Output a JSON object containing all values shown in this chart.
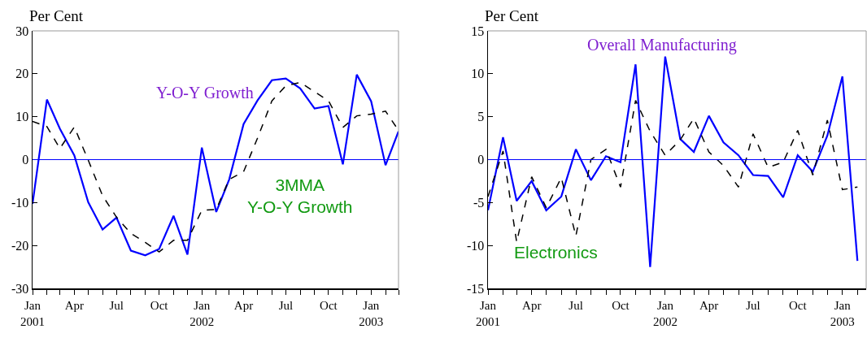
{
  "chart_data": [
    {
      "type": "line",
      "ylabel": "Per Cent",
      "x": [
        "2001-01",
        "2001-02",
        "2001-03",
        "2001-04",
        "2001-05",
        "2001-06",
        "2001-07",
        "2001-08",
        "2001-09",
        "2001-10",
        "2001-11",
        "2001-12",
        "2002-01",
        "2002-02",
        "2002-03",
        "2002-04",
        "2002-05",
        "2002-06",
        "2002-07",
        "2002-08",
        "2002-09",
        "2002-10",
        "2002-11",
        "2002-12",
        "2003-01",
        "2003-02",
        "2003-03"
      ],
      "series": [
        {
          "color": "#0000ff",
          "line_style": "solid",
          "values": [
            -10.3,
            14.0,
            7.2,
            1.0,
            -9.9,
            -16.3,
            -13.5,
            -21.2,
            -22.3,
            -20.8,
            -13.1,
            -22.1,
            2.8,
            -12.2,
            -4.6,
            8.3,
            13.8,
            18.5,
            18.9,
            16.6,
            11.9,
            12.5,
            -1.1,
            19.8,
            13.6,
            -1.3,
            6.6
          ]
        },
        {
          "color": "#000000",
          "line_style": "dashed",
          "values": [
            8.9,
            7.7,
            2.6,
            7.6,
            -0.1,
            -8.4,
            -13.4,
            -17.2,
            -19.3,
            -21.5,
            -18.8,
            -18.8,
            -11.8,
            -11.6,
            -4.6,
            -2.8,
            5.0,
            13.7,
            17.2,
            18.0,
            15.8,
            13.7,
            7.5,
            10.2,
            10.6,
            11.3,
            6.8
          ]
        }
      ],
      "ref_lines": [
        {
          "axis": "y",
          "value": 0,
          "color": "#0000ff"
        }
      ],
      "xlim": [
        "2001-01",
        "2003-03"
      ],
      "xticks": [
        {
          "value": "2001-01",
          "label": "Jan\n2001"
        },
        {
          "value": "2001-02",
          "label": null
        },
        {
          "value": "2001-03",
          "label": null
        },
        {
          "value": "2001-04",
          "label": "Apr"
        },
        {
          "value": "2001-05",
          "label": null
        },
        {
          "value": "2001-06",
          "label": null
        },
        {
          "value": "2001-07",
          "label": "Jul"
        },
        {
          "value": "2001-08",
          "label": null
        },
        {
          "value": "2001-09",
          "label": null
        },
        {
          "value": "2001-10",
          "label": "Oct"
        },
        {
          "value": "2001-11",
          "label": null
        },
        {
          "value": "2001-12",
          "label": null
        },
        {
          "value": "2002-01",
          "label": "Jan\n2002"
        },
        {
          "value": "2002-02",
          "label": null
        },
        {
          "value": "2002-03",
          "label": null
        },
        {
          "value": "2002-04",
          "label": "Apr"
        },
        {
          "value": "2002-05",
          "label": null
        },
        {
          "value": "2002-06",
          "label": null
        },
        {
          "value": "2002-07",
          "label": "Jul"
        },
        {
          "value": "2002-08",
          "label": null
        },
        {
          "value": "2002-09",
          "label": null
        },
        {
          "value": "2002-10",
          "label": "Oct"
        },
        {
          "value": "2002-11",
          "label": null
        },
        {
          "value": "2002-12",
          "label": null
        },
        {
          "value": "2003-01",
          "label": "Jan\n2003"
        },
        {
          "value": "2003-02",
          "label": null
        },
        {
          "value": "2003-03",
          "label": null
        }
      ],
      "annotations": [
        "Y-O-Y Growth",
        "3MMA\nY-O-Y Growth"
      ],
      "ylim": [
        -30,
        30
      ],
      "yticks": [
        -30,
        -20,
        -10,
        0,
        10,
        20,
        30
      ],
      "grid": false,
      "marker": "none"
    },
    {
      "type": "line",
      "ylabel": "Per Cent",
      "x": [
        "2001-01",
        "2001-02",
        "2001-03",
        "2001-04",
        "2001-05",
        "2001-06",
        "2001-07",
        "2001-08",
        "2001-09",
        "2001-10",
        "2001-11",
        "2001-12",
        "2002-01",
        "2002-02",
        "2002-03",
        "2002-04",
        "2002-05",
        "2002-06",
        "2002-07",
        "2002-08",
        "2002-09",
        "2002-10",
        "2002-11",
        "2002-12",
        "2003-01",
        "2003-02"
      ],
      "series": [
        {
          "color": "#0000ff",
          "line_style": "solid",
          "values": [
            -5.9,
            2.6,
            -4.8,
            -2.5,
            -5.9,
            -4.3,
            1.2,
            -2.4,
            0.4,
            -0.3,
            11.1,
            -12.5,
            12.0,
            2.4,
            0.9,
            5.1,
            2.0,
            0.5,
            -1.8,
            -1.9,
            -4.4,
            0.5,
            -1.4,
            2.8,
            9.7,
            -11.8
          ]
        },
        {
          "color": "#000000",
          "line_style": "dashed",
          "values": [
            -4.3,
            1.0,
            -9.6,
            -2.0,
            -5.6,
            -2.1,
            -8.9,
            0.0,
            1.2,
            -3.2,
            6.9,
            3.3,
            0.5,
            2.3,
            4.8,
            0.9,
            -0.7,
            -3.2,
            3.0,
            -0.9,
            -0.3,
            3.4,
            -1.8,
            4.6,
            -3.5,
            -3.2
          ]
        }
      ],
      "ref_lines": [
        {
          "axis": "y",
          "value": 0,
          "color": "#0000ff"
        }
      ],
      "xlim": [
        "2001-01",
        "2003-02-19"
      ],
      "xticks": [
        {
          "value": "2001-01",
          "label": "Jan\n2001"
        },
        {
          "value": "2001-02",
          "label": null
        },
        {
          "value": "2001-03",
          "label": null
        },
        {
          "value": "2001-04",
          "label": "Apr"
        },
        {
          "value": "2001-05",
          "label": null
        },
        {
          "value": "2001-06",
          "label": null
        },
        {
          "value": "2001-07",
          "label": "Jul"
        },
        {
          "value": "2001-08",
          "label": null
        },
        {
          "value": "2001-09",
          "label": null
        },
        {
          "value": "2001-10",
          "label": "Oct"
        },
        {
          "value": "2001-11",
          "label": null
        },
        {
          "value": "2001-12",
          "label": null
        },
        {
          "value": "2002-01",
          "label": "Jan\n2002"
        },
        {
          "value": "2002-02",
          "label": null
        },
        {
          "value": "2002-03",
          "label": null
        },
        {
          "value": "2002-04",
          "label": "Apr"
        },
        {
          "value": "2002-05",
          "label": null
        },
        {
          "value": "2002-06",
          "label": null
        },
        {
          "value": "2002-07",
          "label": "Jul"
        },
        {
          "value": "2002-08",
          "label": null
        },
        {
          "value": "2002-09",
          "label": null
        },
        {
          "value": "2002-10",
          "label": "Oct"
        },
        {
          "value": "2002-11",
          "label": null
        },
        {
          "value": "2002-12",
          "label": null
        },
        {
          "value": "2003-01",
          "label": "Jan\n2003"
        },
        {
          "value": "2003-02",
          "label": null
        }
      ],
      "annotations": [
        "Overall Manufacturing",
        "Electronics"
      ],
      "ylim": [
        -15,
        15
      ],
      "yticks": [
        -15,
        -10,
        -5,
        0,
        5,
        10,
        15
      ],
      "grid": false,
      "marker": "none"
    }
  ]
}
